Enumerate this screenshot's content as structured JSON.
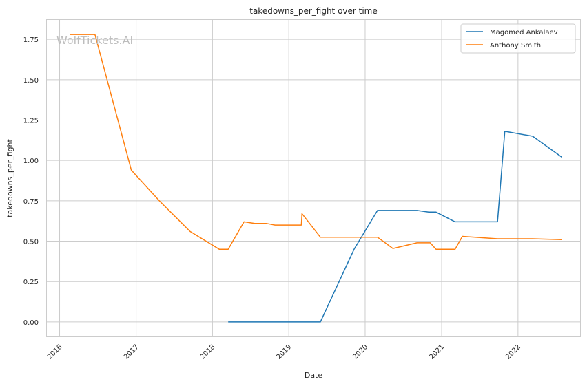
{
  "chart_data": {
    "type": "line",
    "title": "takedowns_per_fight over time",
    "xlabel": "Date",
    "ylabel": "takedowns_per_fight",
    "watermark": "WolfTickets.AI",
    "x_ticks": [
      "2016",
      "2017",
      "2018",
      "2019",
      "2020",
      "2021",
      "2022"
    ],
    "y_ticks": [
      "0.00",
      "0.25",
      "0.50",
      "0.75",
      "1.00",
      "1.25",
      "1.50",
      "1.75"
    ],
    "xlim": [
      "2015-11-01",
      "2022-10-25"
    ],
    "ylim": [
      -0.09,
      1.87
    ],
    "grid": true,
    "legend_position": "top-right",
    "series": [
      {
        "name": "Magomed Ankalaev",
        "color": "#1f77b4",
        "points": [
          [
            "2018-03-17",
            0.0
          ],
          [
            "2019-06-01",
            0.0
          ],
          [
            "2019-11-09",
            0.45
          ],
          [
            "2020-02-29",
            0.69
          ],
          [
            "2020-09-05",
            0.69
          ],
          [
            "2020-10-31",
            0.68
          ],
          [
            "2020-12-05",
            0.68
          ],
          [
            "2021-03-06",
            0.62
          ],
          [
            "2021-09-25",
            0.62
          ],
          [
            "2021-10-30",
            1.18
          ],
          [
            "2022-03-12",
            1.15
          ],
          [
            "2022-07-30",
            1.02
          ]
        ]
      },
      {
        "name": "Anthony Smith",
        "color": "#ff7f0e",
        "points": [
          [
            "2016-02-21",
            1.78
          ],
          [
            "2016-06-18",
            1.78
          ],
          [
            "2016-12-09",
            0.94
          ],
          [
            "2017-04-22",
            0.75
          ],
          [
            "2017-09-16",
            0.56
          ],
          [
            "2018-02-03",
            0.45
          ],
          [
            "2018-03-17",
            0.45
          ],
          [
            "2018-06-01",
            0.62
          ],
          [
            "2018-07-22",
            0.61
          ],
          [
            "2018-09-15",
            0.61
          ],
          [
            "2018-10-27",
            0.6
          ],
          [
            "2019-03-02",
            0.6
          ],
          [
            "2019-03-05",
            0.67
          ],
          [
            "2019-06-01",
            0.525
          ],
          [
            "2020-02-29",
            0.525
          ],
          [
            "2020-05-13",
            0.455
          ],
          [
            "2020-09-05",
            0.49
          ],
          [
            "2020-11-07",
            0.49
          ],
          [
            "2020-12-05",
            0.45
          ],
          [
            "2021-03-06",
            0.45
          ],
          [
            "2021-04-10",
            0.53
          ],
          [
            "2021-09-25",
            0.515
          ],
          [
            "2022-03-12",
            0.515
          ],
          [
            "2022-07-30",
            0.51
          ]
        ]
      }
    ]
  }
}
